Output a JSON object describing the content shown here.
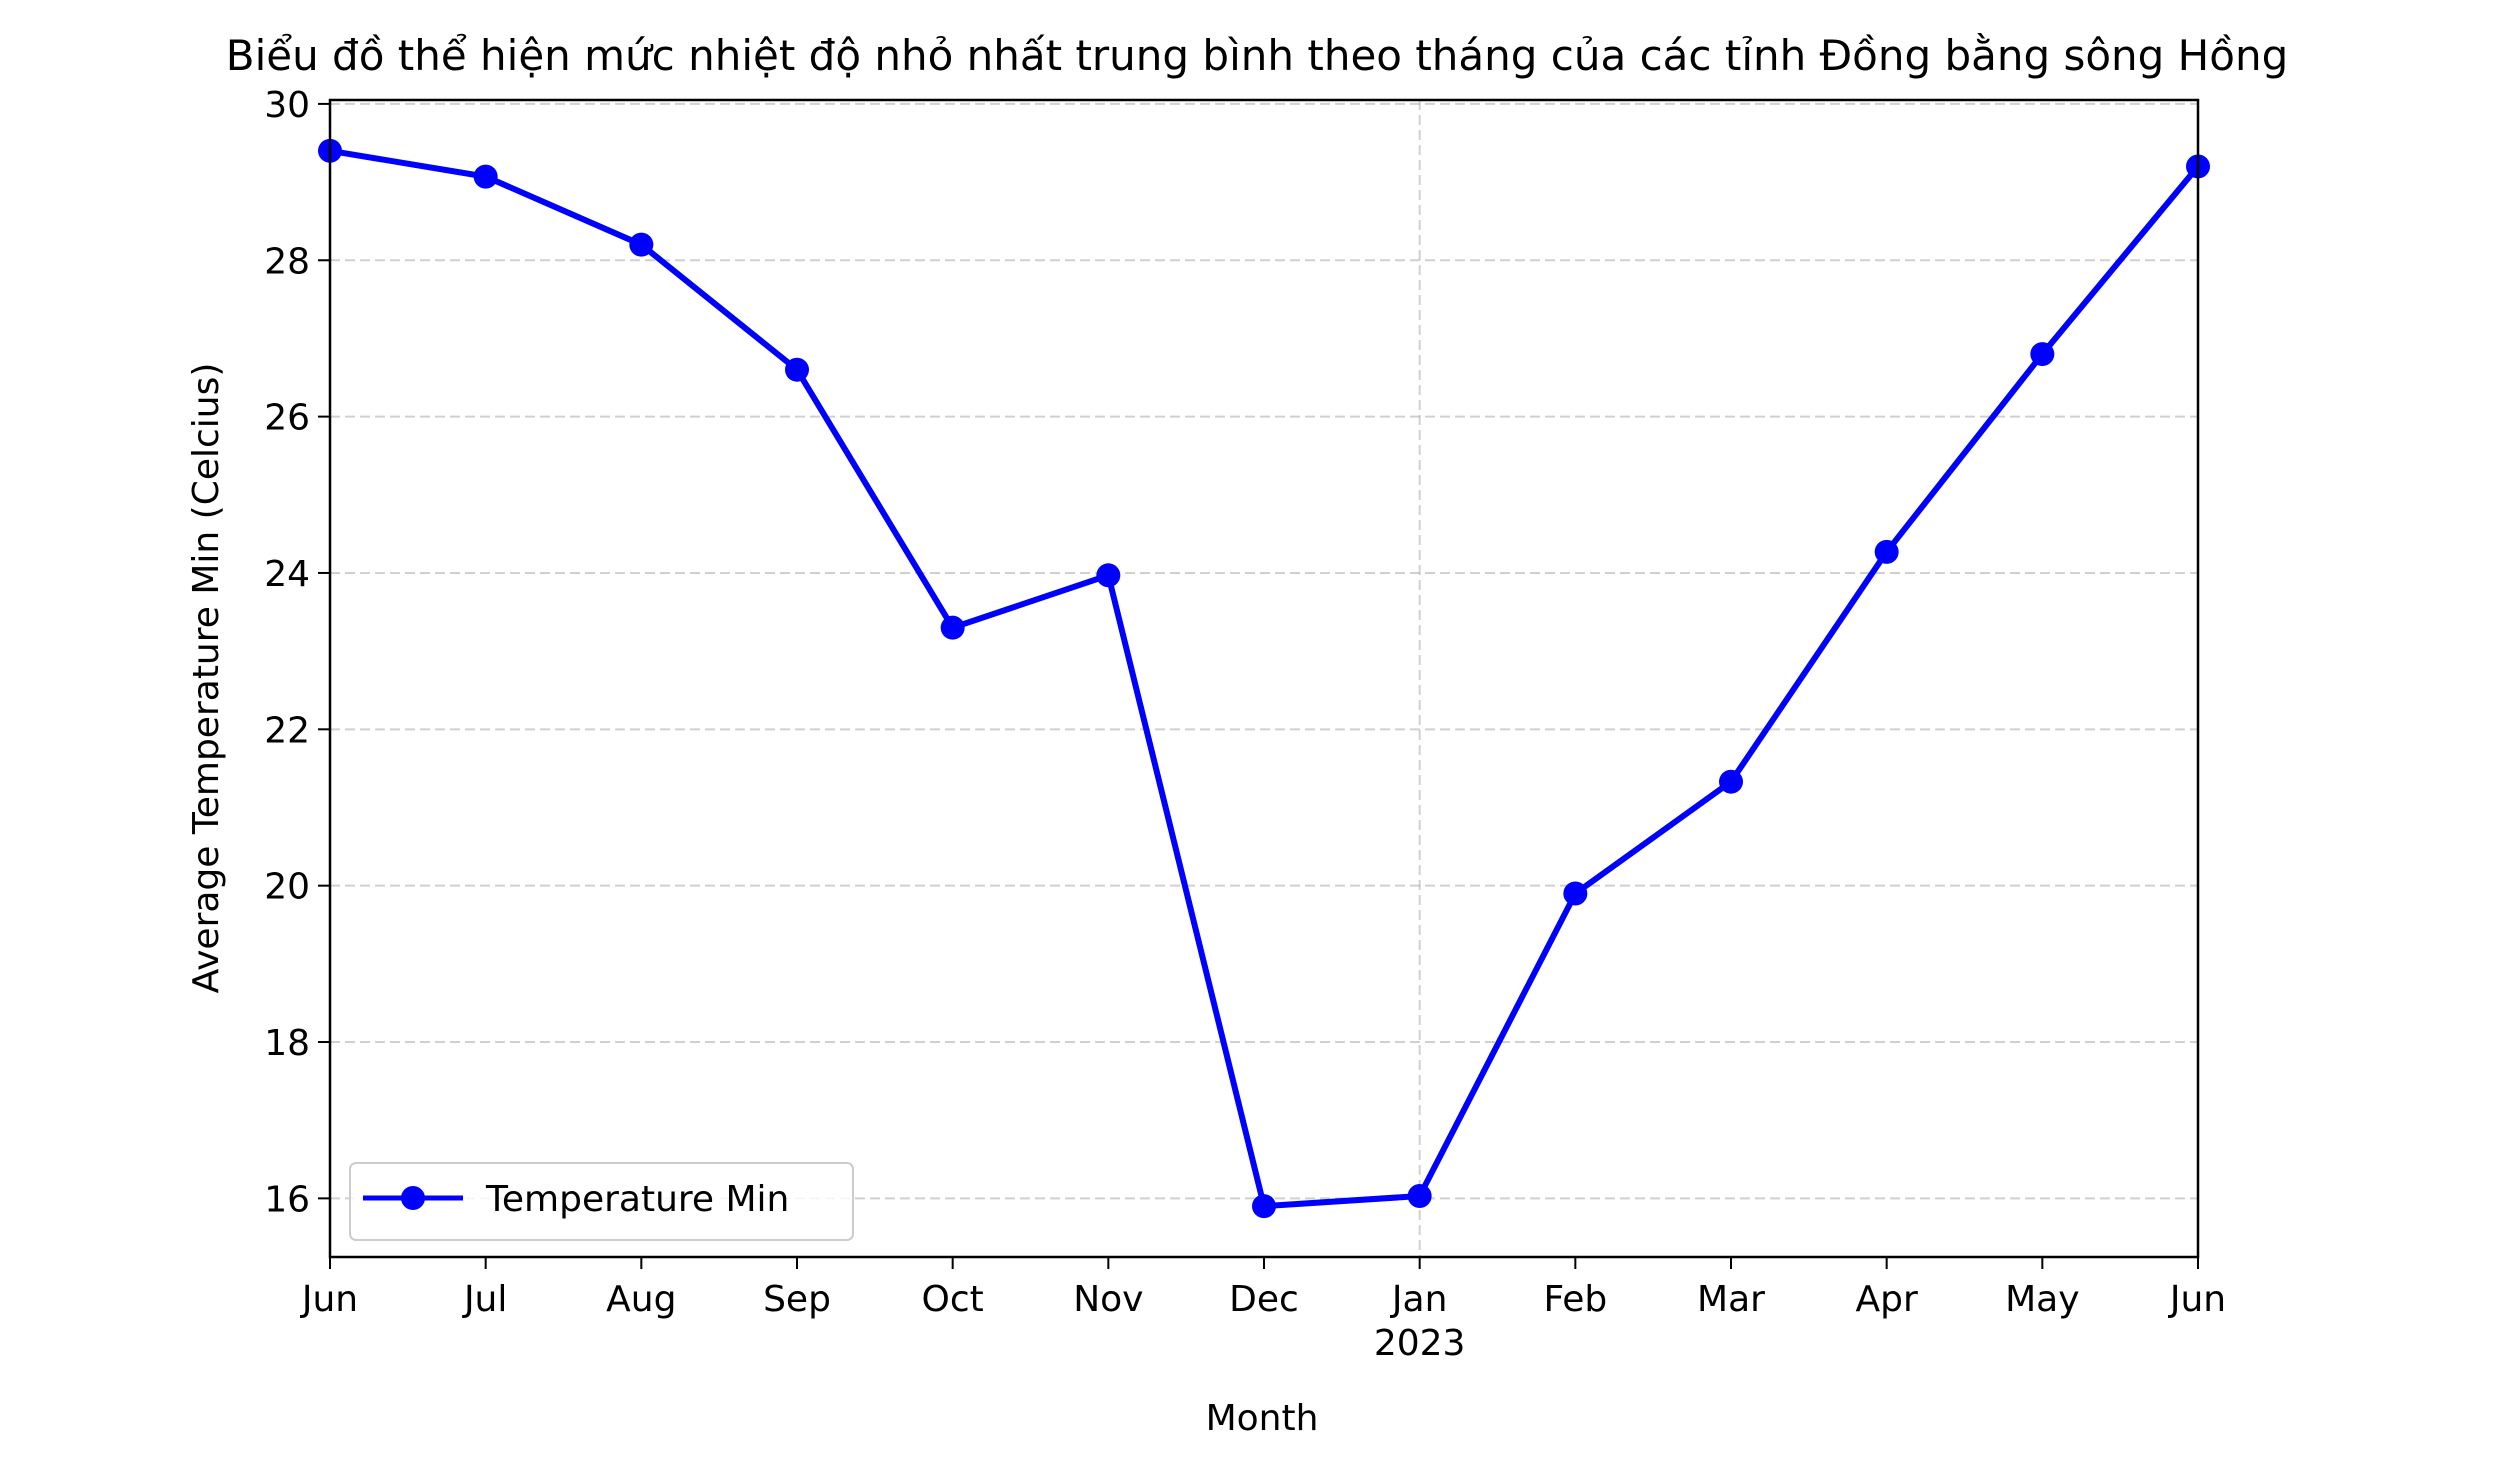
{
  "chart_data": {
    "type": "line",
    "title": "Biểu đồ thể hiện mức nhiệt độ nhỏ nhất trung bình theo tháng của các tỉnh Đồng bằng sông Hồng",
    "xlabel": "Month",
    "ylabel": "Average Temperature Min (Celcius)",
    "x": [
      "2022-06",
      "2022-07",
      "2022-08",
      "2022-09",
      "2022-10",
      "2022-11",
      "2022-12",
      "2023-01",
      "2023-02",
      "2023-03",
      "2023-04",
      "2023-05",
      "2023-06"
    ],
    "x_tick_labels": [
      "Jun",
      "Jul",
      "Aug",
      "Sep",
      "Oct",
      "Nov",
      "Dec",
      "Jan",
      "Feb",
      "Mar",
      "Apr",
      "May",
      "Jun"
    ],
    "x_year_label": "2023",
    "series": [
      {
        "name": "Temperature Min",
        "color": "#0000ff",
        "marker": "circle",
        "values": [
          29.4,
          29.07,
          28.2,
          26.6,
          23.3,
          23.97,
          15.9,
          16.03,
          19.9,
          21.33,
          24.27,
          26.8,
          29.2
        ]
      }
    ],
    "ylim": [
      15.25,
      30.05
    ],
    "y_ticks": [
      16,
      18,
      20,
      22,
      24,
      26,
      28,
      30
    ],
    "grid": true,
    "grid_style": "dashed",
    "legend_position": "lower-left"
  }
}
